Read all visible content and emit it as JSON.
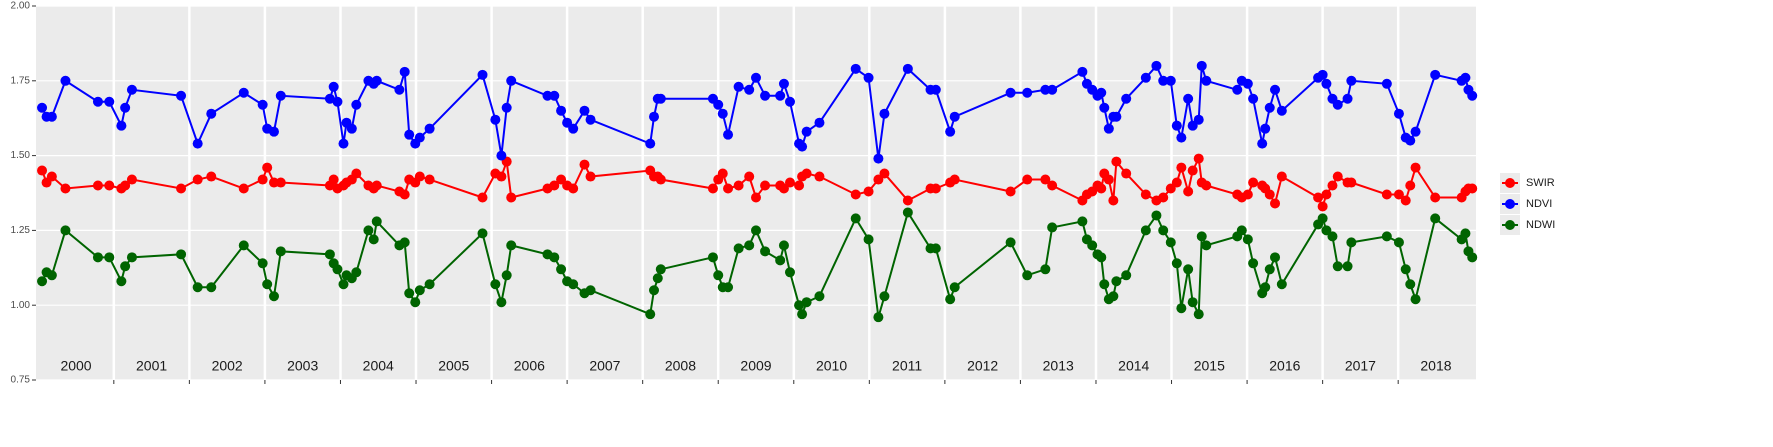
{
  "chart_data": {
    "type": "line",
    "x": [
      2000.05,
      2000.11,
      2000.18,
      2000.36,
      2000.79,
      2000.94,
      2001.1,
      2001.15,
      2001.24,
      2001.89,
      2002.11,
      2002.29,
      2002.72,
      2002.97,
      2003.03,
      2003.12,
      2003.21,
      2003.86,
      2003.91,
      2003.96,
      2004.04,
      2004.08,
      2004.15,
      2004.21,
      2004.37,
      2004.44,
      2004.48,
      2004.78,
      2004.85,
      2004.91,
      2004.99,
      2005.05,
      2005.18,
      2005.88,
      2006.05,
      2006.13,
      2006.2,
      2006.26,
      2006.74,
      2006.83,
      2006.92,
      2007.0,
      2007.08,
      2007.23,
      2007.31,
      2008.1,
      2008.15,
      2008.2,
      2008.24,
      2008.93,
      2009.0,
      2009.06,
      2009.13,
      2009.27,
      2009.41,
      2009.5,
      2009.62,
      2009.82,
      2009.87,
      2009.95,
      2010.07,
      2010.11,
      2010.17,
      2010.34,
      2010.82,
      2010.99,
      2011.12,
      2011.2,
      2011.51,
      2011.81,
      2011.88,
      2012.07,
      2012.13,
      2012.87,
      2013.09,
      2013.33,
      2013.42,
      2013.82,
      2013.88,
      2013.95,
      2014.02,
      2014.07,
      2014.11,
      2014.17,
      2014.23,
      2014.27,
      2014.4,
      2014.66,
      2014.8,
      2014.89,
      2014.99,
      2015.07,
      2015.13,
      2015.22,
      2015.28,
      2015.36,
      2015.4,
      2015.46,
      2015.87,
      2015.93,
      2016.01,
      2016.08,
      2016.2,
      2016.24,
      2016.3,
      2016.37,
      2016.46,
      2016.94,
      2017.0,
      2017.05,
      2017.13,
      2017.2,
      2017.33,
      2017.38,
      2017.85,
      2018.01,
      2018.1,
      2018.16,
      2018.23,
      2018.49,
      2018.84,
      2018.89,
      2018.93,
      2018.98
    ],
    "series": [
      {
        "name": "SWIR",
        "color": "#ff0000",
        "values": [
          1.45,
          1.41,
          1.43,
          1.39,
          1.4,
          1.4,
          1.39,
          1.4,
          1.42,
          1.39,
          1.42,
          1.43,
          1.39,
          1.42,
          1.46,
          1.41,
          1.41,
          1.4,
          1.42,
          1.39,
          1.4,
          1.41,
          1.42,
          1.44,
          1.4,
          1.39,
          1.4,
          1.38,
          1.37,
          1.42,
          1.41,
          1.43,
          1.42,
          1.36,
          1.44,
          1.43,
          1.48,
          1.36,
          1.39,
          1.4,
          1.42,
          1.4,
          1.39,
          1.47,
          1.43,
          1.45,
          1.43,
          1.43,
          1.42,
          1.39,
          1.42,
          1.44,
          1.39,
          1.4,
          1.43,
          1.36,
          1.4,
          1.4,
          1.39,
          1.41,
          1.4,
          1.43,
          1.44,
          1.43,
          1.37,
          1.38,
          1.42,
          1.44,
          1.35,
          1.39,
          1.39,
          1.41,
          1.42,
          1.38,
          1.42,
          1.42,
          1.4,
          1.35,
          1.37,
          1.38,
          1.4,
          1.39,
          1.44,
          1.42,
          1.35,
          1.48,
          1.44,
          1.37,
          1.35,
          1.36,
          1.39,
          1.41,
          1.46,
          1.38,
          1.45,
          1.49,
          1.41,
          1.4,
          1.37,
          1.36,
          1.37,
          1.41,
          1.4,
          1.39,
          1.37,
          1.34,
          1.43,
          1.36,
          1.33,
          1.37,
          1.4,
          1.43,
          1.41,
          1.41,
          1.37,
          1.37,
          1.35,
          1.4,
          1.46,
          1.36,
          1.36,
          1.38,
          1.39,
          1.39
        ]
      },
      {
        "name": "NDVI",
        "color": "#0000ff",
        "values": [
          1.66,
          1.63,
          1.63,
          1.75,
          1.68,
          1.68,
          1.6,
          1.66,
          1.72,
          1.7,
          1.54,
          1.64,
          1.71,
          1.67,
          1.59,
          1.58,
          1.7,
          1.69,
          1.73,
          1.68,
          1.54,
          1.61,
          1.59,
          1.67,
          1.75,
          1.74,
          1.75,
          1.72,
          1.78,
          1.57,
          1.54,
          1.56,
          1.59,
          1.77,
          1.62,
          1.5,
          1.66,
          1.75,
          1.7,
          1.7,
          1.65,
          1.61,
          1.59,
          1.65,
          1.62,
          1.54,
          1.63,
          1.69,
          1.69,
          1.69,
          1.67,
          1.64,
          1.57,
          1.73,
          1.72,
          1.76,
          1.7,
          1.7,
          1.74,
          1.68,
          1.54,
          1.53,
          1.58,
          1.61,
          1.79,
          1.76,
          1.49,
          1.64,
          1.79,
          1.72,
          1.72,
          1.58,
          1.63,
          1.71,
          1.71,
          1.72,
          1.72,
          1.78,
          1.74,
          1.72,
          1.7,
          1.71,
          1.66,
          1.59,
          1.63,
          1.63,
          1.69,
          1.76,
          1.8,
          1.75,
          1.75,
          1.6,
          1.56,
          1.69,
          1.6,
          1.62,
          1.8,
          1.75,
          1.72,
          1.75,
          1.74,
          1.69,
          1.54,
          1.59,
          1.66,
          1.72,
          1.65,
          1.76,
          1.77,
          1.74,
          1.69,
          1.67,
          1.69,
          1.75,
          1.74,
          1.64,
          1.56,
          1.55,
          1.58,
          1.77,
          1.75,
          1.76,
          1.72,
          1.7
        ]
      },
      {
        "name": "NDWI",
        "color": "#006400",
        "values": [
          1.08,
          1.11,
          1.1,
          1.25,
          1.16,
          1.16,
          1.08,
          1.13,
          1.16,
          1.17,
          1.06,
          1.06,
          1.2,
          1.14,
          1.07,
          1.03,
          1.18,
          1.17,
          1.14,
          1.12,
          1.07,
          1.1,
          1.09,
          1.11,
          1.25,
          1.22,
          1.28,
          1.2,
          1.21,
          1.04,
          1.01,
          1.05,
          1.07,
          1.24,
          1.07,
          1.01,
          1.1,
          1.2,
          1.17,
          1.16,
          1.12,
          1.08,
          1.07,
          1.04,
          1.05,
          0.97,
          1.05,
          1.09,
          1.12,
          1.16,
          1.1,
          1.06,
          1.06,
          1.19,
          1.2,
          1.25,
          1.18,
          1.15,
          1.2,
          1.11,
          1.0,
          0.97,
          1.01,
          1.03,
          1.29,
          1.22,
          0.96,
          1.03,
          1.31,
          1.19,
          1.19,
          1.02,
          1.06,
          1.21,
          1.1,
          1.12,
          1.26,
          1.28,
          1.22,
          1.2,
          1.17,
          1.16,
          1.07,
          1.02,
          1.03,
          1.08,
          1.1,
          1.25,
          1.3,
          1.25,
          1.21,
          1.14,
          0.99,
          1.12,
          1.01,
          0.97,
          1.23,
          1.2,
          1.23,
          1.25,
          1.22,
          1.14,
          1.04,
          1.06,
          1.12,
          1.16,
          1.07,
          1.27,
          1.29,
          1.25,
          1.23,
          1.13,
          1.13,
          1.21,
          1.23,
          1.21,
          1.12,
          1.07,
          1.02,
          1.29,
          1.22,
          1.24,
          1.18,
          1.16
        ]
      }
    ],
    "xlim": [
      1999.97,
      2019.03
    ],
    "ylim": [
      0.75,
      2.0
    ],
    "yticks": [
      0.75,
      {
        "value": 1.0,
        "label": "1.00"
      },
      1.25,
      {
        "value": 1.5,
        "label": "1.50"
      },
      1.75,
      {
        "value": 2.0,
        "label": "2.00"
      }
    ],
    "xticks": [
      {
        "value": 2000.5,
        "label": "2000"
      },
      {
        "value": 2001.5,
        "label": "2001"
      },
      {
        "value": 2002.5,
        "label": "2002"
      },
      {
        "value": 2003.5,
        "label": "2003"
      },
      {
        "value": 2004.5,
        "label": "2004"
      },
      {
        "value": 2005.5,
        "label": "2005"
      },
      {
        "value": 2006.5,
        "label": "2006"
      },
      {
        "value": 2007.5,
        "label": "2007"
      },
      {
        "value": 2008.5,
        "label": "2008"
      },
      {
        "value": 2009.5,
        "label": "2009"
      },
      {
        "value": 2010.5,
        "label": "2010"
      },
      {
        "value": 2011.5,
        "label": "2011"
      },
      {
        "value": 2012.5,
        "label": "2012"
      },
      {
        "value": 2013.5,
        "label": "2013"
      },
      {
        "value": 2014.5,
        "label": "2014"
      },
      {
        "value": 2015.5,
        "label": "2015"
      },
      {
        "value": 2016.5,
        "label": "2016"
      },
      {
        "value": 2017.5,
        "label": "2017"
      },
      {
        "value": 2018.5,
        "label": "2018"
      }
    ],
    "year_lines": [
      2001,
      2002,
      2003,
      2004,
      2005,
      2006,
      2007,
      2008,
      2009,
      2010,
      2011,
      2012,
      2013,
      2014,
      2015,
      2016,
      2017,
      2018
    ],
    "grid": true,
    "legend": "right"
  }
}
